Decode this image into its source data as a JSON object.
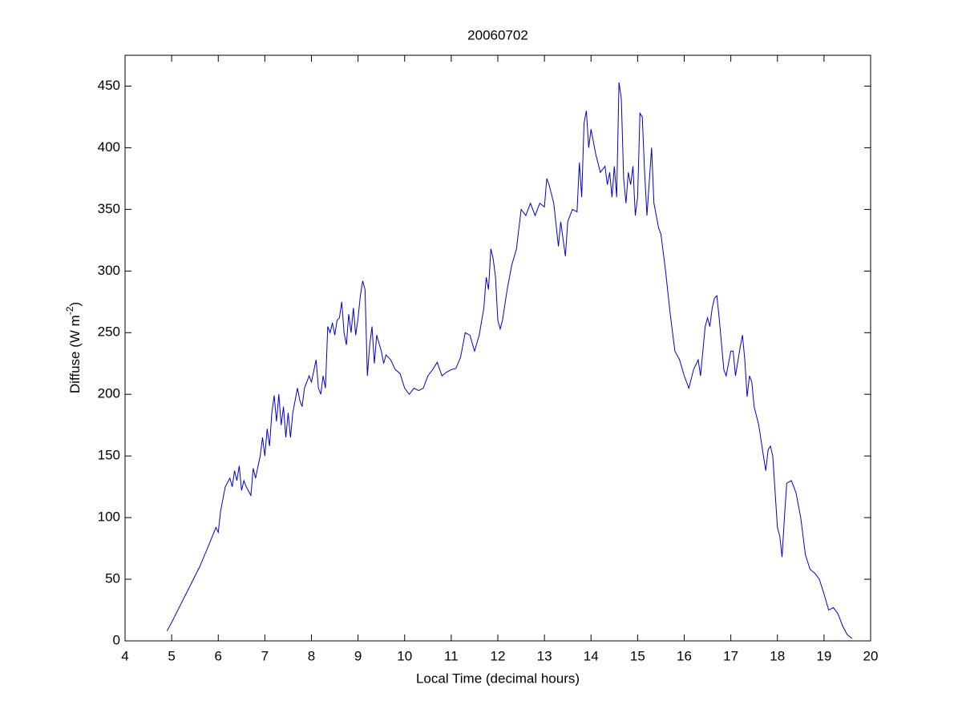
{
  "chart_data": {
    "type": "line",
    "title": "20060702",
    "xlabel": "Local Time (decimal hours)",
    "ylabel": {
      "text": "Diffuse (W m",
      "sup": "-2",
      "end": ")"
    },
    "xlim": [
      4,
      20
    ],
    "xticks": [
      4,
      5,
      6,
      7,
      8,
      9,
      10,
      11,
      12,
      13,
      14,
      15,
      16,
      17,
      18,
      19,
      20
    ],
    "ylim": [
      0,
      475
    ],
    "yticks": [
      0,
      50,
      100,
      150,
      200,
      250,
      300,
      350,
      400,
      450
    ],
    "grid": false,
    "x": [
      4.9,
      5.0,
      5.2,
      5.4,
      5.6,
      5.8,
      5.95,
      6.0,
      6.05,
      6.15,
      6.25,
      6.3,
      6.35,
      6.4,
      6.45,
      6.5,
      6.55,
      6.6,
      6.7,
      6.75,
      6.8,
      6.9,
      6.95,
      7.0,
      7.05,
      7.1,
      7.15,
      7.2,
      7.25,
      7.3,
      7.35,
      7.4,
      7.45,
      7.5,
      7.55,
      7.6,
      7.7,
      7.75,
      7.8,
      7.85,
      7.95,
      8.0,
      8.1,
      8.15,
      8.2,
      8.25,
      8.3,
      8.35,
      8.4,
      8.45,
      8.5,
      8.55,
      8.6,
      8.65,
      8.7,
      8.75,
      8.8,
      8.85,
      8.9,
      8.95,
      9.0,
      9.05,
      9.1,
      9.15,
      9.2,
      9.25,
      9.3,
      9.35,
      9.4,
      9.5,
      9.55,
      9.6,
      9.7,
      9.8,
      9.9,
      10.0,
      10.1,
      10.2,
      10.3,
      10.4,
      10.5,
      10.6,
      10.7,
      10.8,
      10.9,
      11.0,
      11.1,
      11.2,
      11.3,
      11.4,
      11.5,
      11.6,
      11.7,
      11.75,
      11.8,
      11.85,
      11.9,
      11.95,
      12.0,
      12.05,
      12.1,
      12.2,
      12.3,
      12.4,
      12.5,
      12.6,
      12.7,
      12.8,
      12.9,
      13.0,
      13.05,
      13.1,
      13.2,
      13.3,
      13.35,
      13.45,
      13.5,
      13.6,
      13.7,
      13.75,
      13.8,
      13.85,
      13.9,
      13.95,
      14.0,
      14.1,
      14.2,
      14.3,
      14.35,
      14.4,
      14.45,
      14.5,
      14.55,
      14.6,
      14.65,
      14.7,
      14.75,
      14.8,
      14.85,
      14.9,
      14.95,
      15.0,
      15.05,
      15.1,
      15.15,
      15.2,
      15.3,
      15.35,
      15.4,
      15.45,
      15.5,
      15.6,
      15.7,
      15.8,
      15.9,
      16.0,
      16.1,
      16.2,
      16.3,
      16.35,
      16.45,
      16.5,
      16.55,
      16.6,
      16.65,
      16.7,
      16.75,
      16.85,
      16.9,
      17.0,
      17.05,
      17.1,
      17.2,
      17.25,
      17.3,
      17.35,
      17.4,
      17.45,
      17.5,
      17.6,
      17.7,
      17.75,
      17.8,
      17.85,
      17.9,
      18.0,
      18.05,
      18.1,
      18.15,
      18.2,
      18.3,
      18.4,
      18.5,
      18.6,
      18.7,
      18.8,
      18.9,
      19.0,
      19.1,
      19.2,
      19.3,
      19.4,
      19.5,
      19.6
    ],
    "series": [
      {
        "color": "#0000cc",
        "values": [
          8,
          15,
          30,
          45,
          60,
          78,
          92,
          88,
          105,
          125,
          132,
          125,
          138,
          130,
          142,
          122,
          130,
          125,
          118,
          140,
          132,
          150,
          165,
          150,
          172,
          158,
          185,
          199,
          178,
          200,
          175,
          190,
          165,
          185,
          165,
          185,
          205,
          195,
          190,
          205,
          215,
          210,
          228,
          205,
          200,
          215,
          205,
          255,
          250,
          258,
          248,
          260,
          262,
          275,
          250,
          240,
          265,
          250,
          270,
          248,
          262,
          280,
          292,
          285,
          215,
          240,
          255,
          225,
          248,
          235,
          225,
          232,
          228,
          220,
          217,
          205,
          200,
          205,
          203,
          205,
          215,
          220,
          226,
          215,
          218,
          220,
          221,
          230,
          250,
          248,
          235,
          248,
          270,
          295,
          285,
          318,
          310,
          295,
          260,
          253,
          260,
          285,
          305,
          318,
          350,
          345,
          355,
          345,
          355,
          352,
          375,
          370,
          355,
          320,
          340,
          312,
          340,
          350,
          348,
          388,
          360,
          420,
          430,
          400,
          415,
          395,
          380,
          385,
          370,
          380,
          360,
          385,
          360,
          453,
          440,
          375,
          355,
          380,
          370,
          385,
          345,
          360,
          428,
          425,
          380,
          345,
          400,
          355,
          345,
          335,
          330,
          300,
          265,
          235,
          228,
          215,
          205,
          220,
          228,
          215,
          255,
          262,
          255,
          270,
          278,
          280,
          262,
          220,
          215,
          235,
          235,
          215,
          238,
          248,
          228,
          198,
          215,
          210,
          190,
          175,
          150,
          138,
          155,
          158,
          150,
          92,
          85,
          68,
          100,
          128,
          130,
          120,
          100,
          70,
          58,
          55,
          50,
          38,
          25,
          27,
          22,
          12,
          5,
          2
        ]
      }
    ]
  }
}
